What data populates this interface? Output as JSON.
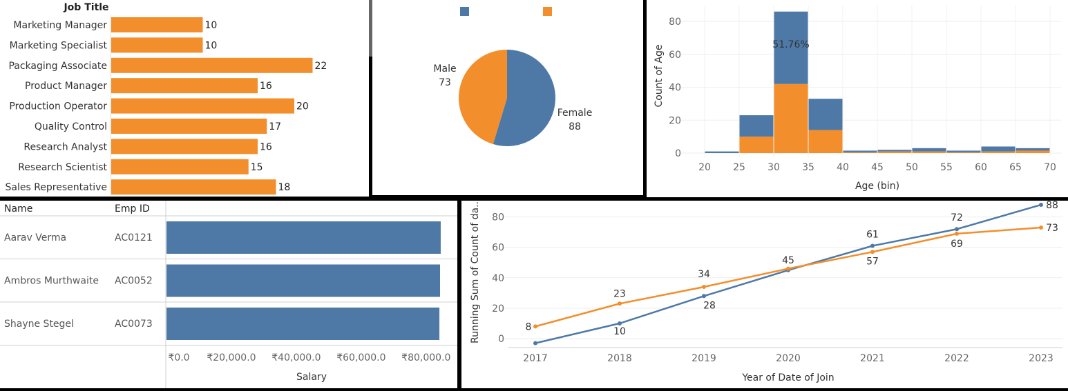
{
  "colors": {
    "blue": "#4e79a7",
    "orange": "#f28e2b"
  },
  "job_panel": {
    "header": "Job Title"
  },
  "controls": [
    {
      "name": "close-icon",
      "glyph": "✕"
    },
    {
      "name": "popout-icon",
      "glyph": "⧉"
    },
    {
      "name": "filter-icon",
      "glyph": "▽"
    },
    {
      "name": "dropdown-icon",
      "glyph": "▾"
    }
  ],
  "table_panel": {
    "headers": [
      "Name",
      "Emp ID"
    ]
  },
  "chart_data": [
    {
      "type": "bar",
      "categories": [
        "Marketing Manager",
        "Marketing Specialist",
        "Packaging Associate",
        "Product Manager",
        "Production Operator",
        "Quality Control",
        "Research Analyst",
        "Research Scientist",
        "Sales Representative"
      ],
      "values": [
        10,
        10,
        22,
        16,
        20,
        17,
        16,
        15,
        18
      ],
      "xlim": [
        0,
        28
      ]
    },
    {
      "type": "pie",
      "slices": [
        {
          "label": "Female",
          "value": 88,
          "color": "#4e79a7"
        },
        {
          "label": "Male",
          "value": 73,
          "color": "#f28e2b"
        }
      ],
      "legend_placement": "top"
    },
    {
      "type": "bar",
      "stacked": true,
      "bins": [
        20,
        25,
        30,
        35,
        40,
        45,
        50,
        55,
        60,
        65
      ],
      "series": [
        {
          "values": [
            0,
            10,
            42,
            14,
            0.5,
            1,
            1,
            0.5,
            1,
            1.5
          ]
        },
        {
          "values": [
            1,
            13,
            44,
            19,
            1,
            1,
            2,
            1,
            3,
            1.5
          ]
        }
      ],
      "annotation": {
        "text": "51.76%",
        "bin": 30
      },
      "xlabel": "Age (bin)",
      "ylabel": "Count of Age",
      "xticks": [
        20,
        25,
        30,
        35,
        40,
        45,
        50,
        55,
        60,
        65,
        70
      ],
      "yticks": [
        0,
        20,
        40,
        60,
        80
      ],
      "ylim": [
        0,
        88
      ]
    },
    {
      "type": "bar",
      "rows": [
        {
          "name": "Aarav Verma",
          "emp_id": "AC0121",
          "salary": 84500
        },
        {
          "name": "Ambros Murthwaite",
          "emp_id": "AC0052",
          "salary": 84300
        },
        {
          "name": "Shayne Stegel",
          "emp_id": "AC0073",
          "salary": 84100
        }
      ],
      "xlabel": "Salary",
      "xtick_labels": [
        "₹0.0",
        "₹20,000.0",
        "₹40,000.0",
        "₹60,000.0",
        "₹80,000.0"
      ],
      "xticks": [
        0,
        20000,
        40000,
        60000,
        80000
      ],
      "xlim": [
        0,
        86000
      ]
    },
    {
      "type": "line",
      "x": [
        2017,
        2018,
        2019,
        2020,
        2021,
        2022,
        2023
      ],
      "series": [
        {
          "color": "#4e79a7",
          "values": [
            -3,
            10,
            28,
            45,
            61,
            72,
            88
          ],
          "labels": [
            "",
            "10",
            "28",
            "45",
            "61",
            "72",
            "88"
          ]
        },
        {
          "color": "#f28e2b",
          "values": [
            8,
            23,
            34,
            46,
            57,
            69,
            73
          ],
          "labels": [
            "8",
            "23",
            "34",
            "",
            "57",
            "69",
            "73"
          ]
        }
      ],
      "xlabel": "Year of Date of Join",
      "ylabel": "Running Sum of Count of da..",
      "yticks": [
        0,
        20,
        40,
        60,
        80
      ],
      "ylim": [
        -3,
        92
      ]
    }
  ]
}
